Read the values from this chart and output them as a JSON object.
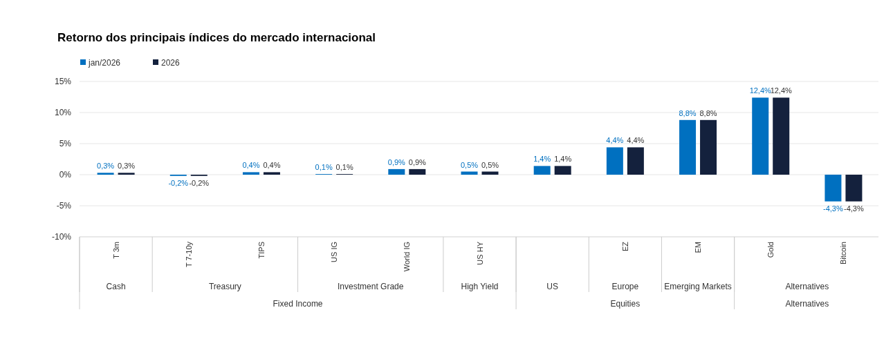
{
  "chart_data": {
    "type": "bar",
    "title": "Retorno dos principais índices do mercado internacional",
    "categories": [
      "T 3m",
      "T 7-10y",
      "TIPS",
      "US IG",
      "World IG",
      "US HY",
      null,
      "EZ",
      "EM",
      "Gold",
      "Bitcoin"
    ],
    "series": [
      {
        "name": "jan/2026",
        "color": "#0070c0",
        "values": [
          0.3,
          -0.2,
          0.4,
          0.1,
          0.9,
          0.5,
          1.4,
          4.4,
          8.8,
          12.4,
          -4.3
        ],
        "value_labels": [
          "0,3%",
          "-0,2%",
          "0,4%",
          "0,1%",
          "0,9%",
          "0,5%",
          "1,4%",
          "4,4%",
          "8,8%",
          "12,4%",
          "-4,3%"
        ]
      },
      {
        "name": "2026",
        "color": "#14213d",
        "values": [
          0.3,
          -0.2,
          0.4,
          0.1,
          0.9,
          0.5,
          1.4,
          4.4,
          8.8,
          12.4,
          -4.3
        ],
        "value_labels": [
          "0,3%",
          "-0,2%",
          "0,4%",
          "0,1%",
          "0,9%",
          "0,5%",
          "1,4%",
          "4,4%",
          "8,8%",
          "12,4%",
          "-4,3%"
        ]
      }
    ],
    "ylim": [
      -10,
      15
    ],
    "yticks": [
      {
        "value": -10,
        "label": "-10%"
      },
      {
        "value": -5,
        "label": "-5%"
      },
      {
        "value": 0,
        "label": "0%"
      },
      {
        "value": 5,
        "label": "5%"
      },
      {
        "value": 10,
        "label": "10%"
      },
      {
        "value": 15,
        "label": "15%"
      }
    ],
    "grid": "y",
    "legend": "top left",
    "annotations": [
      "Cash",
      "Treasury",
      "Investment Grade",
      "High Yield",
      "US",
      "Europe",
      "Emerging Markets",
      "Alternatives",
      "Fixed Income",
      "Equities",
      "Alternatives"
    ]
  }
}
